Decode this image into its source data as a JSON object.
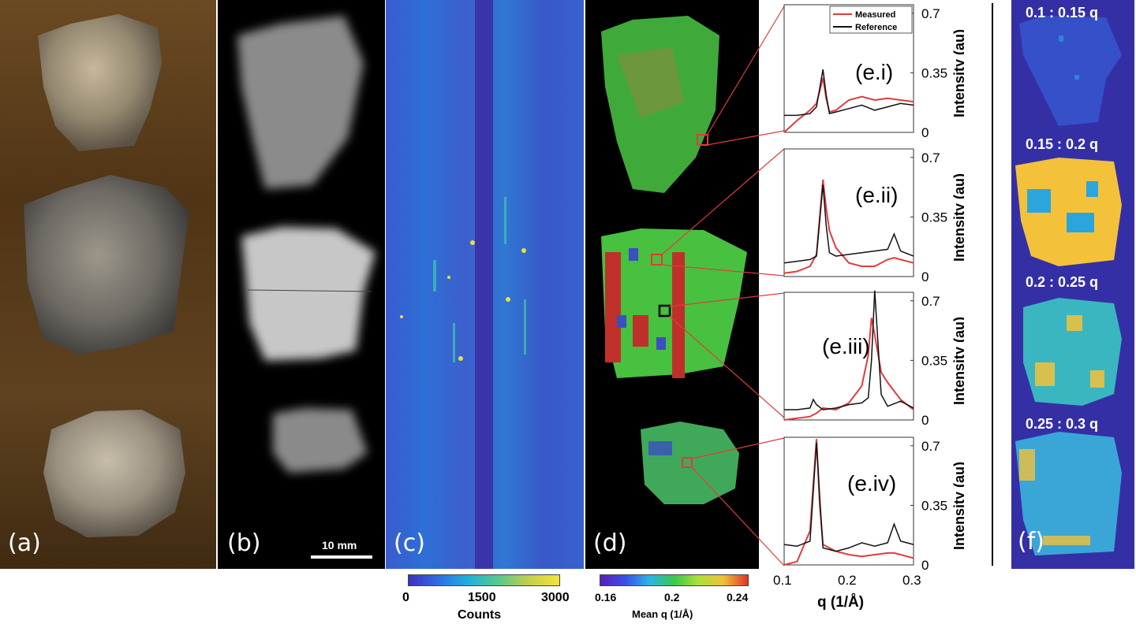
{
  "panels": {
    "a": {
      "label": "(a)"
    },
    "b": {
      "label": "(b)",
      "scalebar_label": "10 mm"
    },
    "c": {
      "label": "(c)",
      "colorbar": {
        "title": "Counts",
        "ticks": [
          "0",
          "1500",
          "3000"
        ]
      }
    },
    "d": {
      "label": "(d)",
      "colorbar": {
        "title": "Mean q  (1/Å)",
        "ticks": [
          "0.16",
          "0.2",
          "0.24"
        ]
      }
    },
    "e": {
      "subplot_labels": [
        "(e.i)",
        "(e.ii)",
        "(e.iii)",
        "(e.iv)"
      ]
    },
    "f": {
      "label": "(f)",
      "bands": [
        "0.1 : 0.15 q",
        "0.15 : 0.2 q",
        "0.2 : 0.25 q",
        "0.25 : 0.3 q"
      ]
    }
  },
  "chart_data": [
    {
      "type": "line",
      "subplot": "(e.i)",
      "ylabel": "Intensity  (au)",
      "xlim": [
        0.1,
        0.3
      ],
      "ylim": [
        0,
        0.75
      ],
      "yticks": [
        "0",
        "0.35",
        "0.7"
      ],
      "legend": {
        "position": "top-right",
        "entries": [
          "Measured",
          "Reference"
        ]
      },
      "x": [
        0.1,
        0.12,
        0.14,
        0.15,
        0.16,
        0.165,
        0.17,
        0.18,
        0.2,
        0.22,
        0.24,
        0.26,
        0.28,
        0.3
      ],
      "series": [
        {
          "name": "Measured",
          "color": "#e03c3c",
          "values": [
            0.0,
            0.07,
            0.13,
            0.17,
            0.32,
            0.2,
            0.12,
            0.13,
            0.19,
            0.21,
            0.19,
            0.2,
            0.19,
            0.18
          ]
        },
        {
          "name": "Reference",
          "color": "#111111",
          "values": [
            0.1,
            0.1,
            0.11,
            0.15,
            0.37,
            0.22,
            0.11,
            0.12,
            0.14,
            0.16,
            0.13,
            0.15,
            0.17,
            0.16
          ]
        }
      ]
    },
    {
      "type": "line",
      "subplot": "(e.ii)",
      "ylabel": "Intensity  (au)",
      "xlim": [
        0.1,
        0.3
      ],
      "ylim": [
        0,
        0.75
      ],
      "yticks": [
        "0",
        "0.35",
        "0.7"
      ],
      "x": [
        0.1,
        0.12,
        0.14,
        0.15,
        0.16,
        0.165,
        0.17,
        0.18,
        0.2,
        0.22,
        0.24,
        0.26,
        0.27,
        0.28,
        0.3
      ],
      "series": [
        {
          "name": "Measured",
          "color": "#e03c3c",
          "values": [
            0.02,
            0.03,
            0.06,
            0.13,
            0.57,
            0.4,
            0.27,
            0.17,
            0.08,
            0.06,
            0.06,
            0.1,
            0.11,
            0.1,
            0.08
          ]
        },
        {
          "name": "Reference",
          "color": "#111111",
          "values": [
            0.08,
            0.09,
            0.1,
            0.12,
            0.54,
            0.3,
            0.14,
            0.12,
            0.13,
            0.14,
            0.15,
            0.16,
            0.25,
            0.15,
            0.12
          ]
        }
      ]
    },
    {
      "type": "line",
      "subplot": "(e.iii)",
      "ylabel": "Intensity  (au)",
      "xlim": [
        0.1,
        0.3
      ],
      "ylim": [
        0,
        0.75
      ],
      "yticks": [
        "0",
        "0.35",
        "0.7"
      ],
      "x": [
        0.1,
        0.12,
        0.14,
        0.145,
        0.15,
        0.16,
        0.18,
        0.2,
        0.22,
        0.23,
        0.235,
        0.24,
        0.25,
        0.26,
        0.28,
        0.3
      ],
      "series": [
        {
          "name": "Measured",
          "color": "#e03c3c",
          "values": [
            0.0,
            0.01,
            0.02,
            0.03,
            0.04,
            0.07,
            0.06,
            0.1,
            0.2,
            0.38,
            0.6,
            0.5,
            0.28,
            0.22,
            0.12,
            0.06
          ]
        },
        {
          "name": "Reference",
          "color": "#111111",
          "values": [
            0.06,
            0.06,
            0.07,
            0.12,
            0.09,
            0.06,
            0.07,
            0.09,
            0.1,
            0.13,
            0.35,
            0.76,
            0.15,
            0.08,
            0.11,
            0.07
          ]
        }
      ]
    },
    {
      "type": "line",
      "subplot": "(e.iv)",
      "ylabel": "Intensity  (au)",
      "xlabel": "q  (1/Å)",
      "xlim": [
        0.1,
        0.3
      ],
      "ylim": [
        0,
        0.75
      ],
      "yticks": [
        "0",
        "0.35",
        "0.7"
      ],
      "xticks": [
        "0.1",
        "0.2",
        "0.3"
      ],
      "x": [
        0.1,
        0.12,
        0.14,
        0.15,
        0.155,
        0.16,
        0.18,
        0.2,
        0.22,
        0.24,
        0.26,
        0.27,
        0.28,
        0.3
      ],
      "series": [
        {
          "name": "Measured",
          "color": "#e03c3c",
          "values": [
            0.0,
            0.02,
            0.2,
            0.74,
            0.35,
            0.12,
            0.08,
            0.06,
            0.05,
            0.06,
            0.07,
            0.07,
            0.06,
            0.04
          ]
        },
        {
          "name": "Reference",
          "color": "#111111",
          "values": [
            0.12,
            0.11,
            0.14,
            0.72,
            0.4,
            0.1,
            0.08,
            0.1,
            0.13,
            0.11,
            0.13,
            0.24,
            0.14,
            0.12
          ]
        }
      ]
    }
  ]
}
